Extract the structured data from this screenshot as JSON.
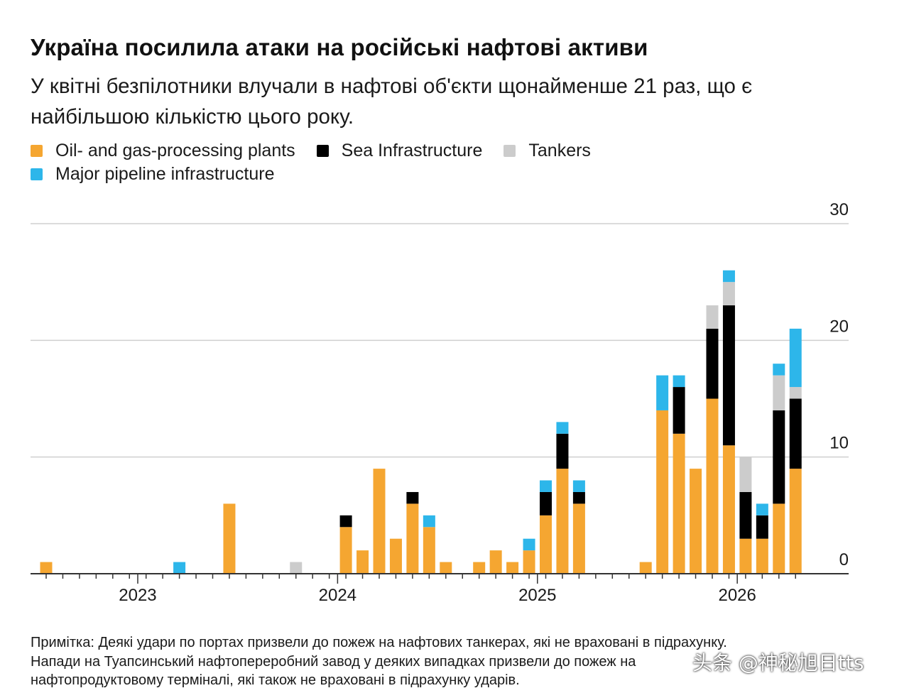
{
  "title": "Україна посилила атаки на російські нафтові активи",
  "subtitle": "У квітні безпілотники влучали в нафтові об'єкти щонайменше 21 раз, що є найбільшою кількістю цього року.",
  "legend": [
    {
      "label": "Oil- and gas-processing plants",
      "color": "#F5A631"
    },
    {
      "label": "Sea Infrastructure",
      "color": "#000000"
    },
    {
      "label": "Tankers",
      "color": "#CCCCCC"
    },
    {
      "label": "Major pipeline infrastructure",
      "color": "#2DB6EA"
    }
  ],
  "note": {
    "line1": "Примітка: Деякі удари по портах призвели до пожеж на нафтових танкерах, які не враховані в підрахунку.",
    "line2": "Напади на Туапсинський нафтопереробний завод у деяких випадках призвели до пожеж на",
    "line3": "нафтопродуктовому терміналі, які також не враховані в підрахунку ударів."
  },
  "watermark": "头条 @神秘旭日tts",
  "chart_data": {
    "type": "bar",
    "stacked": true,
    "ylim": [
      0,
      30
    ],
    "y_ticks": [
      "0",
      "10",
      "20",
      "30"
    ],
    "y_axis_side": "right",
    "grid": true,
    "x_labels": [
      "2023",
      "2024",
      "2025",
      "2026"
    ],
    "x": [
      "2022-07",
      "2022-08",
      "2022-09",
      "2022-10",
      "2022-11",
      "2022-12",
      "2023-01",
      "2023-02",
      "2023-03",
      "2023-04",
      "2023-05",
      "2023-06",
      "2023-07",
      "2023-08",
      "2023-09",
      "2023-10",
      "2023-11",
      "2023-12",
      "2024-01",
      "2024-02",
      "2024-03",
      "2024-04",
      "2024-05",
      "2024-06",
      "2024-07",
      "2024-08",
      "2024-09",
      "2024-10",
      "2024-11",
      "2024-12",
      "2025-01",
      "2025-02",
      "2025-03",
      "2025-04",
      "2025-05",
      "2025-06",
      "2025-07",
      "2025-08",
      "2025-09",
      "2025-10",
      "2025-11",
      "2025-12",
      "2026-01",
      "2026-02",
      "2026-03",
      "2026-04"
    ],
    "series": [
      {
        "name": "Oil- and gas-processing plants",
        "color": "#F5A631",
        "values": [
          1,
          0,
          0,
          0,
          0,
          0,
          0,
          0,
          0,
          0,
          0,
          6,
          0,
          0,
          0,
          0,
          0,
          0,
          4,
          2,
          9,
          3,
          6,
          4,
          1,
          0,
          1,
          2,
          1,
          2,
          5,
          9,
          6,
          0,
          0,
          0,
          1,
          14,
          12,
          9,
          15,
          11,
          3,
          3,
          6,
          9
        ]
      },
      {
        "name": "Sea Infrastructure",
        "color": "#000000",
        "values": [
          0,
          0,
          0,
          0,
          0,
          0,
          0,
          0,
          0,
          0,
          0,
          0,
          0,
          0,
          0,
          0,
          0,
          0,
          1,
          0,
          0,
          0,
          1,
          0,
          0,
          0,
          0,
          0,
          0,
          0,
          2,
          3,
          1,
          0,
          0,
          0,
          0,
          0,
          4,
          0,
          6,
          12,
          4,
          2,
          8,
          6
        ]
      },
      {
        "name": "Tankers",
        "color": "#CCCCCC",
        "values": [
          0,
          0,
          0,
          0,
          0,
          0,
          0,
          0,
          0,
          0,
          0,
          0,
          0,
          0,
          0,
          1,
          0,
          0,
          0,
          0,
          0,
          0,
          0,
          0,
          0,
          0,
          0,
          0,
          0,
          0,
          0,
          0,
          0,
          0,
          0,
          0,
          0,
          0,
          0,
          0,
          2,
          2,
          3,
          0,
          3,
          1
        ]
      },
      {
        "name": "Major pipeline infrastructure",
        "color": "#2DB6EA",
        "values": [
          0,
          0,
          0,
          0,
          0,
          0,
          0,
          0,
          1,
          0,
          0,
          0,
          0,
          0,
          0,
          0,
          0,
          0,
          0,
          0,
          0,
          0,
          0,
          1,
          0,
          0,
          0,
          0,
          0,
          1,
          1,
          1,
          1,
          0,
          0,
          0,
          0,
          3,
          1,
          0,
          0,
          1,
          0,
          1,
          1,
          5
        ]
      }
    ]
  }
}
